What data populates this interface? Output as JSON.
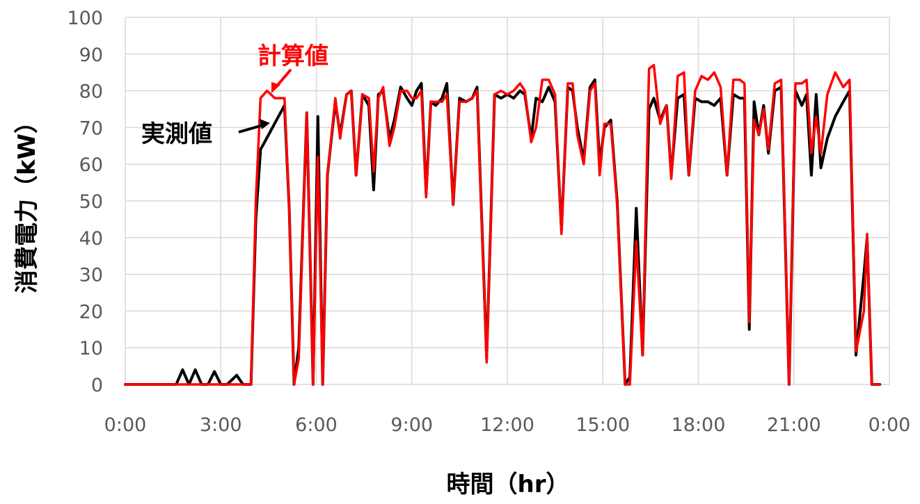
{
  "chart_data": {
    "type": "line",
    "xlabel": "時間（hr）",
    "ylabel": "消費電力（kW）",
    "xlim": [
      0,
      24
    ],
    "ylim": [
      0,
      100
    ],
    "x_ticks": [
      "0:00",
      "3:00",
      "6:00",
      "9:00",
      "12:00",
      "15:00",
      "18:00",
      "21:00",
      "0:00"
    ],
    "y_ticks": [
      "0",
      "10",
      "20",
      "30",
      "40",
      "50",
      "60",
      "70",
      "80",
      "90",
      "100"
    ],
    "grid": true,
    "annotations": [
      {
        "text": "計算値",
        "color": "#ff0000",
        "series": 1
      },
      {
        "text": "実測値",
        "color": "#000000",
        "series": 0
      }
    ],
    "series": [
      {
        "name": "実測値",
        "color": "#000000",
        "points": [
          [
            0,
            0
          ],
          [
            1.6,
            0
          ],
          [
            1.8,
            4
          ],
          [
            2.0,
            0
          ],
          [
            2.2,
            4
          ],
          [
            2.4,
            0
          ],
          [
            2.6,
            0
          ],
          [
            2.8,
            3.5
          ],
          [
            3.0,
            0
          ],
          [
            3.2,
            0
          ],
          [
            3.5,
            2.5
          ],
          [
            3.7,
            0
          ],
          [
            3.95,
            0
          ],
          [
            4.1,
            45
          ],
          [
            4.25,
            64
          ],
          [
            4.5,
            68
          ],
          [
            4.75,
            72
          ],
          [
            5.0,
            76
          ],
          [
            5.15,
            48
          ],
          [
            5.3,
            0
          ],
          [
            5.45,
            10
          ],
          [
            5.7,
            74
          ],
          [
            5.9,
            0
          ],
          [
            6.05,
            73
          ],
          [
            6.2,
            0
          ],
          [
            6.35,
            57
          ],
          [
            6.6,
            77
          ],
          [
            6.75,
            68
          ],
          [
            6.95,
            79
          ],
          [
            7.1,
            80
          ],
          [
            7.25,
            57
          ],
          [
            7.45,
            79
          ],
          [
            7.65,
            76
          ],
          [
            7.8,
            53
          ],
          [
            7.95,
            79
          ],
          [
            8.1,
            80
          ],
          [
            8.3,
            67
          ],
          [
            8.45,
            72
          ],
          [
            8.65,
            81
          ],
          [
            8.85,
            78
          ],
          [
            9.0,
            76
          ],
          [
            9.15,
            80
          ],
          [
            9.3,
            82
          ],
          [
            9.45,
            52
          ],
          [
            9.6,
            77
          ],
          [
            9.75,
            76
          ],
          [
            9.95,
            78
          ],
          [
            10.1,
            82
          ],
          [
            10.3,
            49
          ],
          [
            10.5,
            78
          ],
          [
            10.7,
            77
          ],
          [
            10.9,
            78
          ],
          [
            11.05,
            81
          ],
          [
            11.35,
            7
          ],
          [
            11.6,
            79
          ],
          [
            11.8,
            78
          ],
          [
            12.0,
            79
          ],
          [
            12.2,
            78
          ],
          [
            12.4,
            80
          ],
          [
            12.55,
            79
          ],
          [
            12.75,
            67
          ],
          [
            12.9,
            78
          ],
          [
            13.1,
            77
          ],
          [
            13.3,
            81
          ],
          [
            13.5,
            77
          ],
          [
            13.7,
            42
          ],
          [
            13.9,
            81
          ],
          [
            14.05,
            80
          ],
          [
            14.2,
            70
          ],
          [
            14.4,
            61
          ],
          [
            14.6,
            81
          ],
          [
            14.75,
            83
          ],
          [
            14.9,
            60
          ],
          [
            15.05,
            70
          ],
          [
            15.25,
            72
          ],
          [
            15.45,
            50
          ],
          [
            15.7,
            0
          ],
          [
            15.85,
            2
          ],
          [
            16.05,
            48
          ],
          [
            16.25,
            8
          ],
          [
            16.45,
            75
          ],
          [
            16.6,
            78
          ],
          [
            16.8,
            72
          ],
          [
            17.0,
            76
          ],
          [
            17.15,
            57
          ],
          [
            17.35,
            78
          ],
          [
            17.55,
            79
          ],
          [
            17.7,
            57
          ],
          [
            17.9,
            78
          ],
          [
            18.1,
            77
          ],
          [
            18.3,
            77
          ],
          [
            18.5,
            76
          ],
          [
            18.7,
            78
          ],
          [
            18.9,
            57
          ],
          [
            19.1,
            79
          ],
          [
            19.3,
            78
          ],
          [
            19.45,
            78
          ],
          [
            19.6,
            15
          ],
          [
            19.75,
            77
          ],
          [
            19.9,
            68
          ],
          [
            20.05,
            76
          ],
          [
            20.2,
            63
          ],
          [
            20.4,
            80
          ],
          [
            20.6,
            81
          ],
          [
            20.85,
            0
          ],
          [
            21.05,
            80
          ],
          [
            21.25,
            76
          ],
          [
            21.4,
            79
          ],
          [
            21.55,
            57
          ],
          [
            21.7,
            79
          ],
          [
            21.85,
            59
          ],
          [
            22.05,
            67
          ],
          [
            22.3,
            73
          ],
          [
            22.55,
            77
          ],
          [
            22.75,
            80
          ],
          [
            22.95,
            8
          ],
          [
            23.2,
            30
          ],
          [
            23.3,
            40
          ],
          [
            23.45,
            0
          ],
          [
            23.7,
            0
          ]
        ]
      },
      {
        "name": "計算値",
        "color": "#ff0000",
        "points": [
          [
            0,
            0
          ],
          [
            3.95,
            0
          ],
          [
            4.1,
            50
          ],
          [
            4.25,
            78
          ],
          [
            4.45,
            80
          ],
          [
            4.7,
            78
          ],
          [
            5.0,
            78
          ],
          [
            5.15,
            48
          ],
          [
            5.3,
            0
          ],
          [
            5.45,
            7
          ],
          [
            5.7,
            74
          ],
          [
            5.9,
            0
          ],
          [
            6.05,
            62
          ],
          [
            6.2,
            0
          ],
          [
            6.35,
            57
          ],
          [
            6.6,
            78
          ],
          [
            6.75,
            67
          ],
          [
            6.95,
            79
          ],
          [
            7.1,
            80
          ],
          [
            7.25,
            57
          ],
          [
            7.45,
            79
          ],
          [
            7.65,
            78
          ],
          [
            7.8,
            58
          ],
          [
            7.95,
            78
          ],
          [
            8.1,
            81
          ],
          [
            8.3,
            65
          ],
          [
            8.45,
            70
          ],
          [
            8.65,
            80
          ],
          [
            8.85,
            80
          ],
          [
            9.0,
            78
          ],
          [
            9.15,
            78
          ],
          [
            9.3,
            80
          ],
          [
            9.45,
            51
          ],
          [
            9.6,
            77
          ],
          [
            9.75,
            77
          ],
          [
            9.95,
            77
          ],
          [
            10.1,
            79
          ],
          [
            10.3,
            49
          ],
          [
            10.5,
            77
          ],
          [
            10.7,
            77
          ],
          [
            10.9,
            78
          ],
          [
            11.05,
            80
          ],
          [
            11.35,
            6
          ],
          [
            11.6,
            79
          ],
          [
            11.8,
            80
          ],
          [
            12.0,
            79
          ],
          [
            12.2,
            80
          ],
          [
            12.4,
            82
          ],
          [
            12.55,
            80
          ],
          [
            12.75,
            66
          ],
          [
            12.9,
            70
          ],
          [
            13.1,
            83
          ],
          [
            13.3,
            83
          ],
          [
            13.5,
            79
          ],
          [
            13.7,
            41
          ],
          [
            13.9,
            82
          ],
          [
            14.05,
            82
          ],
          [
            14.2,
            68
          ],
          [
            14.4,
            60
          ],
          [
            14.6,
            80
          ],
          [
            14.75,
            82
          ],
          [
            14.9,
            57
          ],
          [
            15.05,
            71
          ],
          [
            15.25,
            71
          ],
          [
            15.45,
            49
          ],
          [
            15.7,
            0
          ],
          [
            15.85,
            0
          ],
          [
            16.05,
            39
          ],
          [
            16.25,
            8
          ],
          [
            16.45,
            86
          ],
          [
            16.6,
            87
          ],
          [
            16.8,
            71
          ],
          [
            17.0,
            76
          ],
          [
            17.15,
            56
          ],
          [
            17.35,
            84
          ],
          [
            17.55,
            85
          ],
          [
            17.7,
            57
          ],
          [
            17.9,
            80
          ],
          [
            18.1,
            84
          ],
          [
            18.3,
            83
          ],
          [
            18.5,
            85
          ],
          [
            18.7,
            81
          ],
          [
            18.9,
            57
          ],
          [
            19.1,
            83
          ],
          [
            19.3,
            83
          ],
          [
            19.45,
            82
          ],
          [
            19.6,
            17
          ],
          [
            19.75,
            72
          ],
          [
            19.9,
            68
          ],
          [
            20.05,
            75
          ],
          [
            20.2,
            64
          ],
          [
            20.4,
            82
          ],
          [
            20.6,
            83
          ],
          [
            20.85,
            0
          ],
          [
            21.05,
            82
          ],
          [
            21.25,
            82
          ],
          [
            21.4,
            83
          ],
          [
            21.55,
            63
          ],
          [
            21.7,
            73
          ],
          [
            21.85,
            63
          ],
          [
            22.05,
            79
          ],
          [
            22.3,
            85
          ],
          [
            22.55,
            81
          ],
          [
            22.75,
            83
          ],
          [
            22.95,
            9
          ],
          [
            23.2,
            20
          ],
          [
            23.3,
            41
          ],
          [
            23.45,
            0
          ],
          [
            23.7,
            0
          ]
        ]
      }
    ]
  }
}
